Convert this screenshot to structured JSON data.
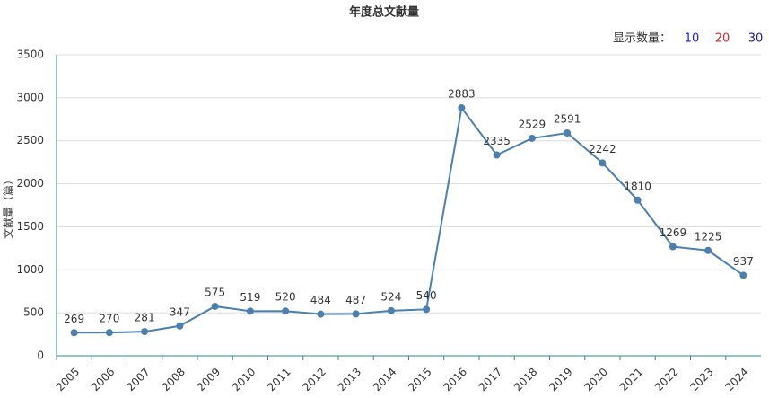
{
  "chart_data": {
    "type": "line",
    "title": "年度总文献量",
    "y_label": "文献量（篇）",
    "categories": [
      "2005",
      "2006",
      "2007",
      "2008",
      "2009",
      "2010",
      "2011",
      "2012",
      "2013",
      "2014",
      "2015",
      "2016",
      "2017",
      "2018",
      "2019",
      "2020",
      "2021",
      "2022",
      "2023",
      "2024"
    ],
    "series": [
      {
        "name": "文献量",
        "color": "#4a7fb0",
        "values": [
          269,
          270,
          281,
          347,
          575,
          519,
          520,
          484,
          487,
          524,
          540,
          2883,
          2335,
          2529,
          2591,
          2242,
          1810,
          1269,
          1225,
          937
        ]
      }
    ],
    "ylim": [
      0,
      3500
    ],
    "yticks": [
      0,
      500,
      1000,
      1500,
      2000,
      2500,
      3000,
      3500
    ],
    "grid": true
  },
  "controls": {
    "label": "显示数量：",
    "options": [
      "10",
      "20",
      "30"
    ]
  }
}
